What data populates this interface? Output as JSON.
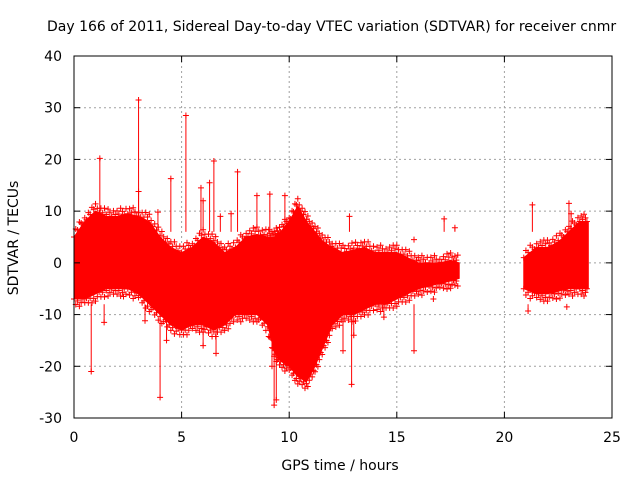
{
  "chart_data": {
    "type": "scatter",
    "title": "Day 166 of 2011, Sidereal Day-to-day VTEC variation (SDTVAR) for receiver cnmr",
    "xlabel": "GPS time / hours",
    "ylabel": "SDTVAR / TECUs",
    "xlim": [
      0,
      25
    ],
    "ylim": [
      -30,
      40
    ],
    "xticks": [
      0,
      5,
      10,
      15,
      20,
      25
    ],
    "yticks": [
      -30,
      -20,
      -10,
      0,
      10,
      20,
      30,
      40
    ],
    "grid": true,
    "marker": "+",
    "color": "#ff0000",
    "series": [
      {
        "name": "SDTVAR",
        "envelope": {
          "x": [
            0.0,
            0.5,
            1.0,
            1.5,
            2.0,
            2.5,
            3.0,
            3.5,
            4.0,
            4.5,
            5.0,
            5.5,
            6.0,
            6.5,
            7.0,
            7.5,
            8.0,
            8.5,
            9.0,
            9.3,
            9.6,
            10.0,
            10.4,
            10.8,
            11.2,
            11.6,
            12.0,
            12.5,
            13.0,
            13.5,
            14.0,
            14.5,
            15.0,
            15.5,
            16.0,
            16.5,
            17.0,
            17.5,
            17.9
          ],
          "upper": [
            5,
            8,
            10,
            9,
            9,
            9.5,
            9,
            8,
            5,
            3,
            2,
            3,
            5,
            4,
            2,
            3,
            5,
            5.5,
            5,
            5,
            6,
            8,
            11,
            8,
            6,
            4,
            3,
            2,
            2.5,
            3,
            2,
            2,
            2,
            1,
            0,
            0,
            0,
            0.5,
            0
          ],
          "lower": [
            -7,
            -7,
            -6,
            -5,
            -5,
            -5,
            -6,
            -8,
            -10,
            -12,
            -13,
            -12,
            -12,
            -13,
            -12,
            -10,
            -10,
            -10,
            -12,
            -17,
            -19,
            -20,
            -22,
            -23,
            -20,
            -16,
            -12,
            -10,
            -10,
            -9,
            -8,
            -8,
            -7,
            -6,
            -5,
            -4.5,
            -4,
            -3.5,
            -3
          ]
        },
        "envelope2": {
          "x": [
            20.9,
            21.5,
            22.0,
            22.5,
            23.0,
            23.5,
            23.9
          ],
          "upper": [
            1,
            3,
            3,
            4,
            6,
            8,
            8
          ],
          "lower": [
            -5,
            -6,
            -6,
            -5.5,
            -5,
            -5,
            -5
          ]
        },
        "outliers": [
          {
            "x": 3.0,
            "y": 31.5
          },
          {
            "x": 5.2,
            "y": 28.5
          },
          {
            "x": 1.2,
            "y": 20.2
          },
          {
            "x": 6.5,
            "y": 19.7
          },
          {
            "x": 7.6,
            "y": 17.6
          },
          {
            "x": 4.5,
            "y": 16.3
          },
          {
            "x": 5.9,
            "y": 14.5
          },
          {
            "x": 3.0,
            "y": 13.8
          },
          {
            "x": 6.3,
            "y": 15.5
          },
          {
            "x": 6.0,
            "y": 12.0
          },
          {
            "x": 9.1,
            "y": 13.3
          },
          {
            "x": 9.8,
            "y": 13.0
          },
          {
            "x": 8.5,
            "y": 13.0
          },
          {
            "x": 7.3,
            "y": 9.5
          },
          {
            "x": 3.9,
            "y": 9.8
          },
          {
            "x": 6.8,
            "y": 9.0
          },
          {
            "x": 12.8,
            "y": 9.0
          },
          {
            "x": 17.2,
            "y": 8.5
          },
          {
            "x": 17.7,
            "y": 6.8
          },
          {
            "x": 23.0,
            "y": 11.5
          },
          {
            "x": 23.1,
            "y": 9.5
          },
          {
            "x": 21.3,
            "y": 11.2
          },
          {
            "x": 15.8,
            "y": 4.5
          },
          {
            "x": 1.4,
            "y": -11.5
          },
          {
            "x": 3.3,
            "y": -11.2
          },
          {
            "x": 2.3,
            "y": -6.5
          },
          {
            "x": 5.8,
            "y": -9.2
          },
          {
            "x": 5.0,
            "y": -11.0
          },
          {
            "x": 6.6,
            "y": -17.5
          },
          {
            "x": 6.0,
            "y": -16.0
          },
          {
            "x": 4.3,
            "y": -15.0
          },
          {
            "x": 0.8,
            "y": -21.0
          },
          {
            "x": 4.0,
            "y": -26.0
          },
          {
            "x": 9.4,
            "y": -26.5
          },
          {
            "x": 9.3,
            "y": -27.5
          },
          {
            "x": 12.9,
            "y": -23.5
          },
          {
            "x": 12.5,
            "y": -17.0
          },
          {
            "x": 15.8,
            "y": -17.0
          },
          {
            "x": 14.4,
            "y": -10.5
          },
          {
            "x": 16.7,
            "y": -7.0
          },
          {
            "x": 21.1,
            "y": -9.3
          },
          {
            "x": 22.9,
            "y": -8.5
          },
          {
            "x": 9.2,
            "y": -20.0
          },
          {
            "x": 10.8,
            "y": -13.0
          },
          {
            "x": 13.0,
            "y": -14.0
          }
        ]
      }
    ]
  }
}
